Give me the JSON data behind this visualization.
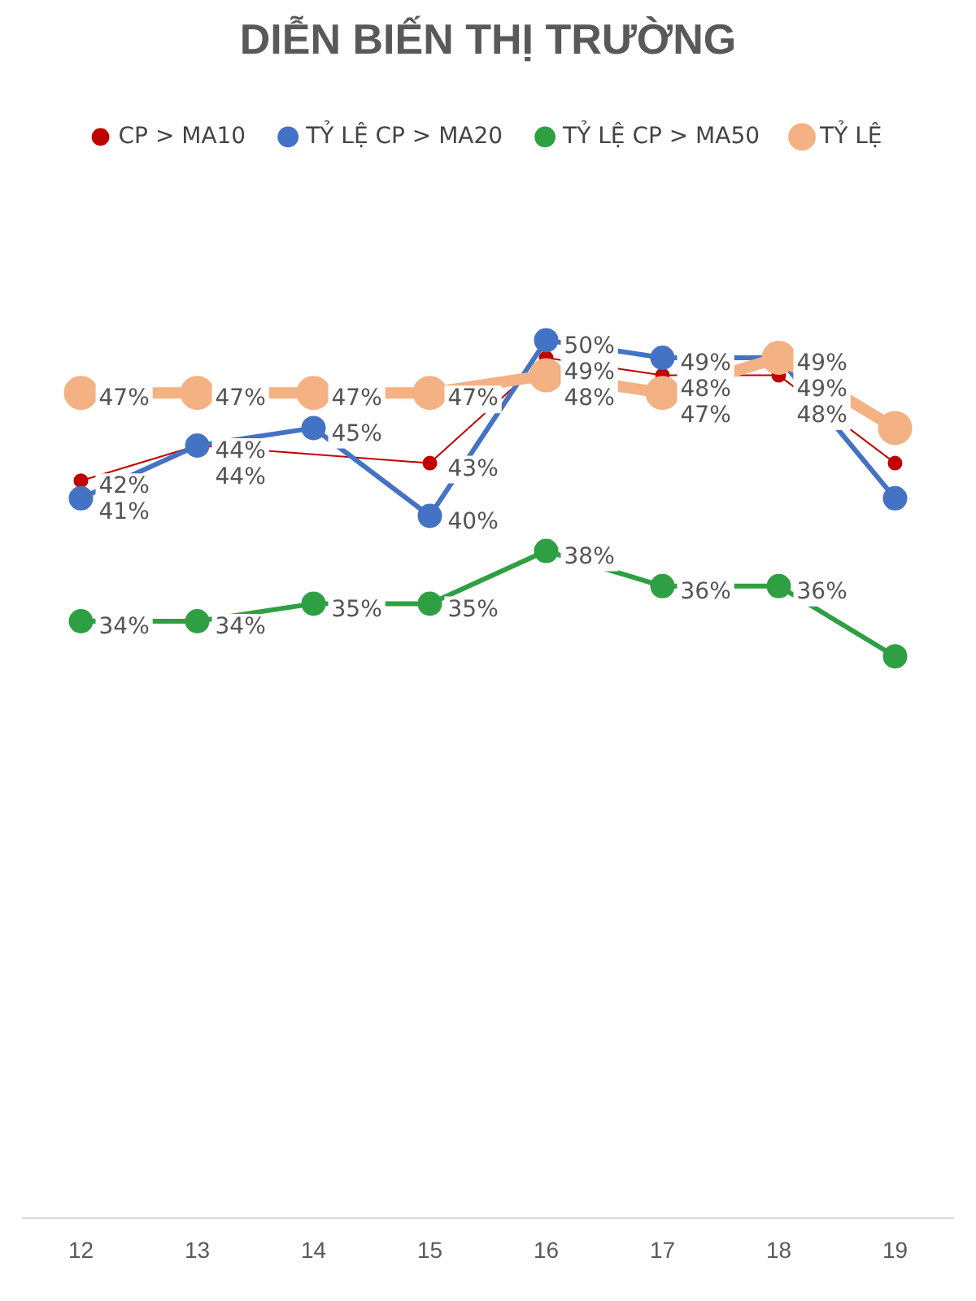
{
  "chart_data": {
    "type": "line",
    "title": "DIỄN BIẾN THỊ TRƯỜNG",
    "categories": [
      "12",
      "13",
      "14",
      "15",
      "16",
      "17",
      "18",
      "19"
    ],
    "series": [
      {
        "name": "CP > MA10",
        "color": "#c00000",
        "values": [
          42,
          44,
          null,
          43,
          49,
          48,
          48,
          43
        ],
        "value_labels": [
          "42%",
          "44%",
          null,
          "43%",
          "49%",
          "48%",
          "48%",
          null
        ]
      },
      {
        "name": "TỶ LỆ CP > MA20",
        "color": "#4472c4",
        "values": [
          41,
          44,
          45,
          40,
          50,
          49,
          49,
          41
        ],
        "value_labels": [
          "41%",
          "44%",
          "45%",
          "40%",
          "50%",
          "49%",
          "49%",
          null
        ]
      },
      {
        "name": "TỶ LỆ CP > MA50",
        "color": "#2ea043",
        "values": [
          34,
          34,
          35,
          35,
          38,
          36,
          36,
          32
        ],
        "value_labels": [
          "34%",
          "34%",
          "35%",
          "35%",
          "38%",
          "36%",
          "36%",
          null
        ]
      },
      {
        "name": "TỶ LỆ",
        "color": "#f4b183",
        "values": [
          47,
          47,
          47,
          47,
          48,
          47,
          49,
          45
        ],
        "value_labels": [
          "47%",
          "47%",
          "47%",
          "47%",
          "48%",
          "47%",
          "49%",
          null
        ]
      }
    ],
    "tick_labels": "x",
    "grid": false,
    "legend": "top",
    "marker": "circle",
    "line_style": "solid"
  }
}
